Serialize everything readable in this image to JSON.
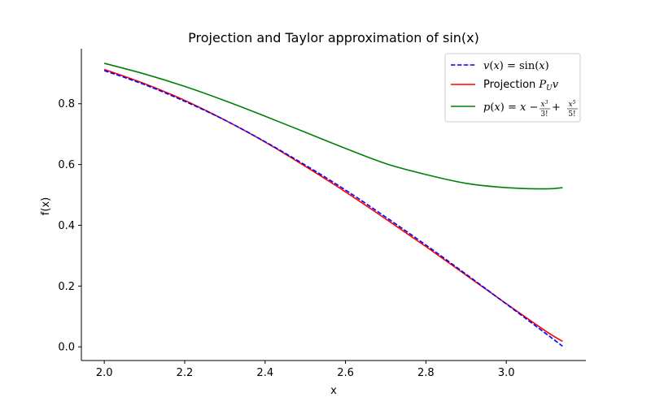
{
  "chart_data": {
    "type": "line",
    "title": "Projection and Taylor approximation of sin(x)",
    "xlabel": "x",
    "ylabel": "f(x)",
    "xlim": [
      1.943,
      3.198
    ],
    "ylim": [
      -0.045,
      0.981
    ],
    "xticks": [
      2.0,
      2.2,
      2.4,
      2.6,
      2.8,
      3.0
    ],
    "xtick_labels": [
      "2.0",
      "2.2",
      "2.4",
      "2.6",
      "2.8",
      "3.0"
    ],
    "yticks": [
      0.0,
      0.2,
      0.4,
      0.6,
      0.8
    ],
    "ytick_labels": [
      "0.0",
      "0.2",
      "0.4",
      "0.6",
      "0.8"
    ],
    "grid": false,
    "legend_position": "top-right",
    "x": [
      2.0,
      2.1,
      2.2,
      2.3,
      2.4,
      2.5,
      2.6,
      2.7,
      2.8,
      2.9,
      3.0,
      3.1,
      3.14
    ],
    "series": [
      {
        "name": "v(x) = sin(x)",
        "legend_parts": [
          "v",
          "(",
          "x",
          ") = sin(",
          "x",
          ")"
        ],
        "color": "#0000ff",
        "dash": "dashed",
        "values": [
          0.909,
          0.863,
          0.808,
          0.746,
          0.675,
          0.598,
          0.516,
          0.427,
          0.335,
          0.239,
          0.141,
          0.042,
          0.002
        ]
      },
      {
        "name": "Projection P_U v",
        "legend_parts": [
          "Projection ",
          "P",
          "U",
          "v"
        ],
        "color": "#ff0000",
        "dash": "solid",
        "values": [
          0.913,
          0.866,
          0.811,
          0.746,
          0.674,
          0.594,
          0.51,
          0.421,
          0.33,
          0.236,
          0.142,
          0.05,
          0.018
        ]
      },
      {
        "name": "p(x) = x − x³/3! + x⁵/5!",
        "legend_parts": [
          "p",
          "(",
          "x",
          ") = ",
          "x",
          " − ",
          "x",
          "3",
          "3!",
          " + ",
          "x",
          "5",
          "5!"
        ],
        "color": "#008000",
        "dash": "solid",
        "values": [
          0.933,
          0.898,
          0.857,
          0.81,
          0.759,
          0.706,
          0.653,
          0.603,
          0.567,
          0.538,
          0.524,
          0.52,
          0.524
        ]
      }
    ]
  }
}
